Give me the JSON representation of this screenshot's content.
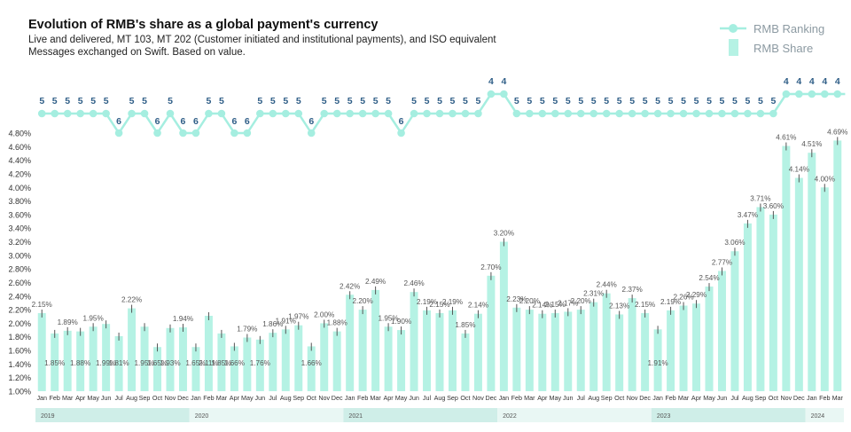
{
  "title": "Evolution of RMB's share as a global payment's currency",
  "subtitle_line1": "Live and delivered, MT 103, MT 202 (Customer initiated and institutional payments), and ISO equivalent",
  "subtitle_line2": "Messages exchanged on Swift. Based on value.",
  "colors": {
    "bar": "#b5f2e4",
    "ranking": "#a5eee0",
    "axis_text": "#333333",
    "year_band_a": "#cfeee8",
    "year_band_b": "#e9f7f4"
  },
  "chart_data": {
    "type": "bar",
    "legend": [
      {
        "name": "RMB Ranking",
        "type": "line"
      },
      {
        "name": "RMB Share",
        "type": "bar"
      }
    ],
    "legend_position": "top-right",
    "grid": false,
    "ylim": [
      1.0,
      4.8
    ],
    "y_ticks": [
      "1.00%",
      "1.20%",
      "1.40%",
      "1.60%",
      "1.80%",
      "2.00%",
      "2.20%",
      "2.40%",
      "2.60%",
      "2.80%",
      "3.00%",
      "3.20%",
      "3.40%",
      "3.60%",
      "3.80%",
      "4.00%",
      "4.20%",
      "4.40%",
      "4.60%",
      "4.80%"
    ],
    "categories": [
      "Jan",
      "Feb",
      "Mar",
      "Apr",
      "May",
      "Jun",
      "Jul",
      "Aug",
      "Sep",
      "Oct",
      "Nov",
      "Dec",
      "Jan",
      "Feb",
      "Mar",
      "Apr",
      "May",
      "Jun",
      "Jul",
      "Aug",
      "Sep",
      "Oct",
      "Nov",
      "Dec",
      "Jan",
      "Feb",
      "Mar",
      "Apr",
      "May",
      "Jun",
      "Jul",
      "Aug",
      "Sep",
      "Oct",
      "Nov",
      "Dec",
      "Jan",
      "Feb",
      "Mar",
      "Apr",
      "May",
      "Jun",
      "Jul",
      "Aug",
      "Sep",
      "Oct",
      "Nov",
      "Dec",
      "Jan",
      "Feb",
      "Mar",
      "Apr",
      "May",
      "Jun",
      "Jul",
      "Aug",
      "Sep",
      "Oct",
      "Nov",
      "Dec",
      "Jan",
      "Feb",
      "Mar"
    ],
    "years": [
      {
        "label": "2019",
        "count": 12
      },
      {
        "label": "2020",
        "count": 12
      },
      {
        "label": "2021",
        "count": 12
      },
      {
        "label": "2022",
        "count": 12
      },
      {
        "label": "2023",
        "count": 12
      },
      {
        "label": "2024",
        "count": 3
      }
    ],
    "share_values": [
      2.15,
      1.85,
      1.89,
      1.88,
      1.95,
      1.99,
      1.81,
      2.22,
      1.95,
      1.65,
      1.93,
      1.94,
      1.65,
      2.11,
      1.85,
      1.66,
      1.79,
      1.76,
      1.86,
      1.91,
      1.97,
      1.66,
      2.0,
      1.88,
      2.42,
      2.2,
      2.49,
      1.95,
      1.9,
      2.46,
      2.19,
      2.15,
      2.19,
      1.85,
      2.14,
      2.7,
      3.2,
      2.23,
      2.2,
      2.14,
      2.15,
      2.17,
      2.2,
      2.31,
      2.44,
      2.13,
      2.37,
      2.15,
      1.91,
      2.19,
      2.26,
      2.29,
      2.54,
      2.77,
      3.06,
      3.47,
      3.71,
      3.6,
      4.61,
      4.14,
      4.51,
      4.0,
      4.69
    ],
    "share_labels": [
      "2.15%",
      "1.85%",
      "1.89%",
      "1.88%",
      "1.95%",
      "1.99%",
      "1.81%",
      "2.22%",
      "1.95%",
      "1.65%",
      "1.93%",
      "1.94%",
      "1.65%",
      "2.11%",
      "1.85%",
      "1.66%",
      "1.79%",
      "1.76%",
      "1.86%",
      "1.91%",
      "1.97%",
      "1.66%",
      "2.00%",
      "1.88%",
      "2.42%",
      "2.20%",
      "2.49%",
      "1.95%",
      "1.90%",
      "2.46%",
      "2.19%",
      "2.15%",
      "2.19%",
      "1.85%",
      "2.14%",
      "2.70%",
      "3.20%",
      "2.23%",
      "2.20%",
      "2.14%",
      "2.15%",
      "2.17%",
      "2.20%",
      "2.31%",
      "2.44%",
      "2.13%",
      "2.37%",
      "2.15%",
      "1.91%",
      "2.19%",
      "2.26%",
      "2.29%",
      "2.54%",
      "2.77%",
      "3.06%",
      "3.47%",
      "3.71%",
      "3.60%",
      "4.61%",
      "4.14%",
      "4.51%",
      "4.00%",
      "4.69%"
    ],
    "share_label_positions": [
      "a",
      "b",
      "a",
      "b",
      "a",
      "b",
      "b",
      "a",
      "b",
      "b",
      "b",
      "a",
      "b",
      "b",
      "b",
      "b",
      "a",
      "b",
      "a",
      "a",
      "a",
      "b",
      "a",
      "a",
      "a",
      "a",
      "a",
      "a",
      "a",
      "a",
      "a",
      "a",
      "a",
      "a",
      "a",
      "a",
      "a",
      "a",
      "a",
      "a",
      "a",
      "a",
      "a",
      "a",
      "a",
      "a",
      "a",
      "a",
      "b",
      "a",
      "a",
      "a",
      "a",
      "a",
      "a",
      "a",
      "a",
      "a",
      "a",
      "a",
      "a",
      "a",
      "a"
    ],
    "ranking": [
      5,
      5,
      5,
      5,
      5,
      5,
      6,
      5,
      5,
      6,
      5,
      6,
      6,
      5,
      5,
      6,
      6,
      5,
      5,
      5,
      5,
      6,
      5,
      5,
      5,
      5,
      5,
      5,
      6,
      5,
      5,
      5,
      5,
      5,
      5,
      4,
      4,
      5,
      5,
      5,
      5,
      5,
      5,
      5,
      5,
      5,
      5,
      5,
      5,
      5,
      5,
      5,
      5,
      5,
      5,
      5,
      5,
      5,
      4,
      4,
      4,
      4,
      4
    ]
  }
}
